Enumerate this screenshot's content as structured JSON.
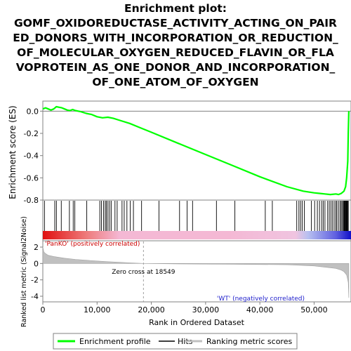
{
  "chart_data": {
    "type": "line",
    "title_lines": [
      "Enrichment plot:",
      "GOMF_OXIDOREDUCTASE_ACTIVITY_ACTING_ON_PAIR",
      "ED_DONORS_WITH_INCORPORATION_OR_REDUCTION_",
      "OF_MOLECULAR_OXYGEN_REDUCED_FLAVIN_OR_FLA",
      "VOPROTEIN_AS_ONE_DONOR_AND_INCORPORATION_",
      "OF_ONE_ATOM_OF_OXYGEN"
    ],
    "xlabel": "Rank in Ordered Dataset",
    "es_ylabel": "Enrichment score (ES)",
    "metric_ylabel": "Ranked list metric (Signal2Noise)",
    "xlim": [
      0,
      56800
    ],
    "es_ylim": [
      -0.8,
      0.04
    ],
    "metric_ylim": [
      -4.5,
      2.5
    ],
    "x_ticks": [
      {
        "value": 0,
        "label": "0"
      },
      {
        "value": 10000,
        "label": "10,000"
      },
      {
        "value": 20000,
        "label": "20,000"
      },
      {
        "value": 30000,
        "label": "30,000"
      },
      {
        "value": 40000,
        "label": "40,000"
      },
      {
        "value": 50000,
        "label": "50,000"
      }
    ],
    "es_y_ticks": [
      {
        "value": 0.0,
        "label": "0.0"
      },
      {
        "value": -0.2,
        "label": "-0.2"
      },
      {
        "value": -0.4,
        "label": "-0.4"
      },
      {
        "value": -0.6,
        "label": "-0.6"
      },
      {
        "value": -0.8,
        "label": "-0.8"
      }
    ],
    "metric_y_ticks": [
      {
        "value": 2,
        "label": "2"
      },
      {
        "value": 0,
        "label": "0"
      },
      {
        "value": -2,
        "label": "-2"
      },
      {
        "value": -4,
        "label": "-4"
      }
    ],
    "enrichment_profile": {
      "name": "Enrichment profile",
      "color": "#00ff00",
      "x": [
        0,
        500,
        1000,
        1500,
        2000,
        2500,
        3000,
        3500,
        4000,
        4500,
        5000,
        5500,
        6000,
        7000,
        8000,
        9000,
        10000,
        11000,
        12000,
        13000,
        14000,
        16000,
        18000,
        20000,
        25000,
        30000,
        35000,
        40000,
        45000,
        48000,
        50000,
        51000,
        52000,
        53000,
        54000,
        54500,
        55000,
        55500,
        55800,
        56000,
        56200,
        56300,
        56400
      ],
      "y": [
        0.02,
        0.03,
        0.02,
        0.01,
        0.02,
        0.04,
        0.035,
        0.03,
        0.02,
        0.01,
        0.005,
        0.015,
        0.005,
        -0.005,
        -0.02,
        -0.03,
        -0.05,
        -0.06,
        -0.055,
        -0.065,
        -0.08,
        -0.11,
        -0.15,
        -0.19,
        -0.29,
        -0.39,
        -0.49,
        -0.59,
        -0.68,
        -0.72,
        -0.735,
        -0.74,
        -0.745,
        -0.75,
        -0.745,
        -0.75,
        -0.74,
        -0.72,
        -0.68,
        -0.6,
        -0.45,
        -0.2,
        0.0
      ]
    },
    "hits": {
      "name": "Hits",
      "color": "#000000",
      "x": [
        300,
        2200,
        2500,
        3400,
        4900,
        5600,
        5900,
        8100,
        10500,
        10800,
        11200,
        11500,
        11700,
        12000,
        12300,
        12600,
        13300,
        13700,
        14600,
        15000,
        15500,
        16100,
        16700,
        18200,
        21400,
        25200,
        26600,
        27600,
        32000,
        35400,
        41000,
        42300,
        46800,
        47200,
        47500,
        47800,
        48200,
        49500,
        50100,
        50600,
        51000,
        51400,
        51700,
        52000,
        52500,
        52800,
        53100,
        53400,
        53700,
        54000,
        54200,
        54500,
        54800,
        55000,
        55200,
        55400,
        55500,
        55600,
        55700,
        55800,
        55900,
        56000,
        56100,
        56200,
        56300
      ]
    },
    "metric_curve": {
      "name": "Ranking metric scores",
      "color": "#c0c0c0",
      "x": [
        0,
        200,
        500,
        1000,
        2000,
        4000,
        6000,
        8000,
        10000,
        12000,
        14000,
        16000,
        18549,
        25000,
        35000,
        45000,
        46800,
        50000,
        52000,
        54000,
        55000,
        55500,
        56000,
        56300,
        56400
      ],
      "y": [
        2.0,
        1.4,
        1.2,
        1.0,
        0.85,
        0.65,
        0.5,
        0.4,
        0.3,
        0.22,
        0.15,
        0.08,
        0.0,
        -0.05,
        -0.1,
        -0.15,
        -0.2,
        -0.3,
        -0.45,
        -0.6,
        -0.8,
        -1.0,
        -1.4,
        -2.3,
        -4.2
      ]
    },
    "zero_cross": {
      "value": 18549,
      "label": "Zero cross at 18549"
    },
    "class_labels": {
      "positive": "'PanKO' (positively correlated)",
      "negative": "'WT' (negatively correlated)"
    },
    "legend": {
      "placement": "bottom",
      "items": [
        {
          "label": "Enrichment profile",
          "color": "#00ff00"
        },
        {
          "label": "Hits",
          "color": "#000000"
        },
        {
          "label": "Ranking metric scores",
          "color": "#c0c0c0"
        }
      ]
    },
    "grid": false
  }
}
